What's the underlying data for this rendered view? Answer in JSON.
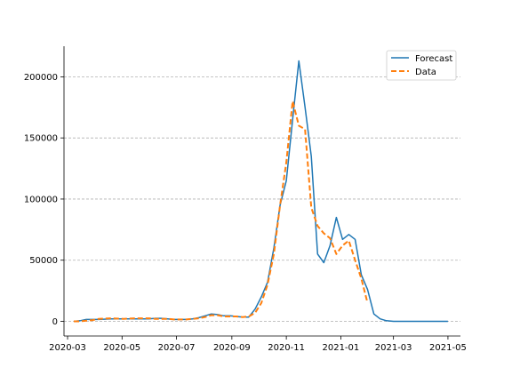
{
  "chart_data": {
    "type": "line",
    "title": "",
    "xlabel": "",
    "ylabel": "",
    "xlim": [
      "2020-02-26",
      "2021-05-15"
    ],
    "ylim": [
      -12000,
      225000
    ],
    "grid": {
      "y": true,
      "x": false,
      "style": "dashed"
    },
    "legend_position": "top-right",
    "x_ticks": [
      "2020-03",
      "2020-05",
      "2020-07",
      "2020-09",
      "2020-11",
      "2021-01",
      "2021-03",
      "2021-05"
    ],
    "y_ticks": [
      0,
      50000,
      100000,
      150000,
      200000
    ],
    "series": [
      {
        "name": "Forecast",
        "color": "#1f77b4",
        "style": "solid",
        "points": [
          [
            "2020-03-08",
            0
          ],
          [
            "2020-03-15",
            500
          ],
          [
            "2020-03-22",
            1500
          ],
          [
            "2020-03-29",
            1500
          ],
          [
            "2020-04-05",
            1500
          ],
          [
            "2020-04-19",
            2000
          ],
          [
            "2020-05-03",
            2000
          ],
          [
            "2020-05-17",
            2000
          ],
          [
            "2020-05-31",
            2000
          ],
          [
            "2020-06-07",
            2500
          ],
          [
            "2020-06-14",
            2500
          ],
          [
            "2020-06-21",
            2000
          ],
          [
            "2020-06-28",
            1500
          ],
          [
            "2020-07-05",
            1500
          ],
          [
            "2020-07-12",
            1500
          ],
          [
            "2020-07-19",
            2000
          ],
          [
            "2020-07-26",
            3000
          ],
          [
            "2020-08-02",
            4500
          ],
          [
            "2020-08-09",
            6000
          ],
          [
            "2020-08-16",
            5500
          ],
          [
            "2020-08-23",
            4500
          ],
          [
            "2020-08-30",
            4500
          ],
          [
            "2020-09-06",
            4000
          ],
          [
            "2020-09-13",
            3500
          ],
          [
            "2020-09-20",
            3500
          ],
          [
            "2020-09-27",
            10000
          ],
          [
            "2020-10-04",
            20000
          ],
          [
            "2020-10-11",
            32000
          ],
          [
            "2020-10-18",
            60000
          ],
          [
            "2020-10-25",
            95000
          ],
          [
            "2020-11-01",
            115000
          ],
          [
            "2020-11-08",
            165000
          ],
          [
            "2020-11-15",
            213000
          ],
          [
            "2020-11-22",
            175000
          ],
          [
            "2020-11-29",
            135000
          ],
          [
            "2020-12-06",
            55000
          ],
          [
            "2020-12-13",
            48000
          ],
          [
            "2020-12-20",
            62000
          ],
          [
            "2020-12-27",
            85000
          ],
          [
            "2021-01-03",
            67000
          ],
          [
            "2021-01-10",
            71000
          ],
          [
            "2021-01-17",
            67000
          ],
          [
            "2021-01-24",
            38000
          ],
          [
            "2021-01-31",
            26000
          ],
          [
            "2021-02-07",
            6000
          ],
          [
            "2021-02-14",
            2000
          ],
          [
            "2021-02-21",
            500
          ],
          [
            "2021-03-01",
            0
          ],
          [
            "2021-03-15",
            0
          ],
          [
            "2021-04-01",
            0
          ],
          [
            "2021-04-15",
            0
          ],
          [
            "2021-05-01",
            0
          ]
        ]
      },
      {
        "name": "Data",
        "color": "#ff7f0e",
        "style": "dashed",
        "points": [
          [
            "2020-03-08",
            0
          ],
          [
            "2020-03-15",
            0
          ],
          [
            "2020-03-22",
            500
          ],
          [
            "2020-03-29",
            1000
          ],
          [
            "2020-04-05",
            2000
          ],
          [
            "2020-04-19",
            2500
          ],
          [
            "2020-05-03",
            2000
          ],
          [
            "2020-05-17",
            2500
          ],
          [
            "2020-05-31",
            2500
          ],
          [
            "2020-06-07",
            2000
          ],
          [
            "2020-06-14",
            2000
          ],
          [
            "2020-06-21",
            2000
          ],
          [
            "2020-06-28",
            1500
          ],
          [
            "2020-07-05",
            1500
          ],
          [
            "2020-07-12",
            1500
          ],
          [
            "2020-07-19",
            2000
          ],
          [
            "2020-07-26",
            2500
          ],
          [
            "2020-08-02",
            3500
          ],
          [
            "2020-08-09",
            5000
          ],
          [
            "2020-08-16",
            5000
          ],
          [
            "2020-08-23",
            4000
          ],
          [
            "2020-08-30",
            4000
          ],
          [
            "2020-09-06",
            4000
          ],
          [
            "2020-09-13",
            3500
          ],
          [
            "2020-09-20",
            4000
          ],
          [
            "2020-09-27",
            7000
          ],
          [
            "2020-10-04",
            15000
          ],
          [
            "2020-10-11",
            30000
          ],
          [
            "2020-10-18",
            55000
          ],
          [
            "2020-10-25",
            95000
          ],
          [
            "2020-11-01",
            130000
          ],
          [
            "2020-11-08",
            180000
          ],
          [
            "2020-11-15",
            160000
          ],
          [
            "2020-11-22",
            157000
          ],
          [
            "2020-11-29",
            93000
          ],
          [
            "2020-12-06",
            78000
          ],
          [
            "2020-12-13",
            72000
          ],
          [
            "2020-12-20",
            68000
          ],
          [
            "2020-12-27",
            55000
          ],
          [
            "2021-01-03",
            62000
          ],
          [
            "2021-01-10",
            66000
          ],
          [
            "2021-01-17",
            50000
          ],
          [
            "2021-01-24",
            35000
          ],
          [
            "2021-01-31",
            15000
          ]
        ]
      }
    ]
  }
}
